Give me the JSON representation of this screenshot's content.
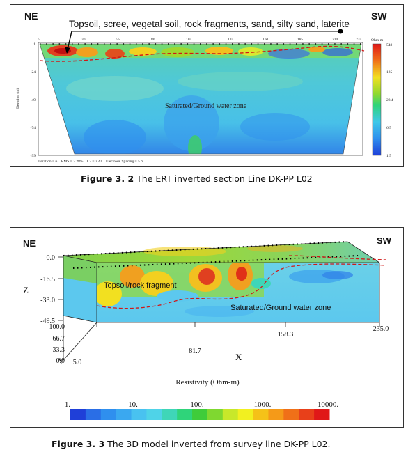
{
  "figure1": {
    "label_ne": "NE",
    "label_sw": "SW",
    "annotation": "Topsoil, scree, vegetal soil, rock fragments, sand, silty sand, laterite",
    "zone_label": "Saturated/Ground water zone",
    "x_ticks": [
      "5",
      "30",
      "55",
      "80",
      "105",
      "135",
      "160",
      "185",
      "210",
      "235"
    ],
    "y_ticks": [
      "1",
      "-24",
      "-49",
      "-74",
      "-99"
    ],
    "y_axis_label": "Elevation (m)",
    "colorbar_title": "Ohm-m",
    "colorbar_ticks": [
      "548",
      "125",
      "28.4",
      "6.5",
      "1.5"
    ],
    "footer": "Iteration = 6    RMS = 3.28%    L2 = 2.42    Electrode Spacing = 5 m",
    "caption_bold": "Figure 3. 2",
    "caption_text": " The ERT inverted section Line DK-PP L02"
  },
  "figure2": {
    "label_ne": "NE",
    "label_sw": "SW",
    "z_ticks": [
      "-0.0",
      "-16.5",
      "-33.0",
      "-49.5"
    ],
    "z_label": "Z",
    "y_ticks": [
      "100.0",
      "66.7",
      "33.3",
      "-0.0"
    ],
    "y_label": "Y",
    "x_ticks": [
      "5.0",
      "81.7",
      "158.3",
      "235.0"
    ],
    "x_label": "X",
    "topsoil_label": "Topsoil/rock fragment",
    "zone_label": "Saturated/Ground water zone",
    "legend_title": "Resistivity (Ohm-m)",
    "legend_ticks": [
      "1.",
      "10.",
      "100.",
      "1000.",
      "10000."
    ],
    "legend_colors": [
      "#1f3fd8",
      "#2a6ee6",
      "#2f8fee",
      "#3aa8f0",
      "#49c2f0",
      "#4fd3e8",
      "#3fd6b8",
      "#2fd47a",
      "#3fcc3a",
      "#7fd830",
      "#c8e82a",
      "#f2f020",
      "#f5c218",
      "#f59a18",
      "#f07018",
      "#e8401a",
      "#e01818"
    ],
    "caption_bold": "Figure 3. 3",
    "caption_text": " The 3D model inverted from survey line DK-PP L02."
  }
}
